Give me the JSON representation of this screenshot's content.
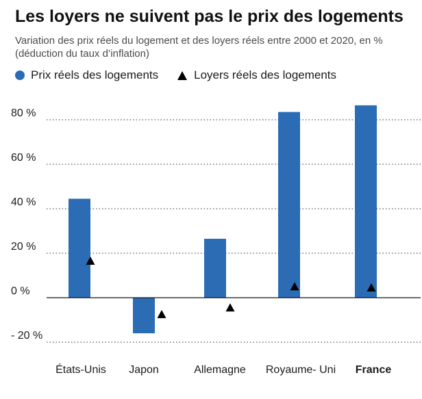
{
  "title": "Les loyers ne suivent pas le prix des logements",
  "subtitle": "Variation des prix réels du logement et des loyers réels entre 2000 et 2020, en % (déduction du taux d’inflation)",
  "colors": {
    "bar": "#2b6cb5",
    "marker": "#000000",
    "grid": "#555555",
    "text": "#1a1a1a"
  },
  "chart_data": {
    "type": "bar",
    "categories": [
      "États-Unis",
      "Japon",
      "Allemagne",
      "Royaume- Uni",
      "France"
    ],
    "highlight_category": "France",
    "series": [
      {
        "name": "Prix réels des logements",
        "kind": "bar",
        "values": [
          44.5,
          -16,
          26.5,
          83.5,
          86.5
        ]
      },
      {
        "name": "Loyers réels des logements",
        "kind": "triangle-marker",
        "values": [
          16.5,
          -7.5,
          -4.5,
          5,
          4.5
        ]
      }
    ],
    "yticks": [
      80,
      60,
      40,
      20,
      0,
      -20
    ],
    "ytick_labels": [
      "80 %",
      "60 %",
      "40 %",
      "20 %",
      "0 %",
      "- 20 %"
    ],
    "ylim": [
      -25,
      95
    ],
    "grid": "horizontal dotted",
    "legend_position": "top-left",
    "xlabel": "",
    "ylabel": ""
  }
}
